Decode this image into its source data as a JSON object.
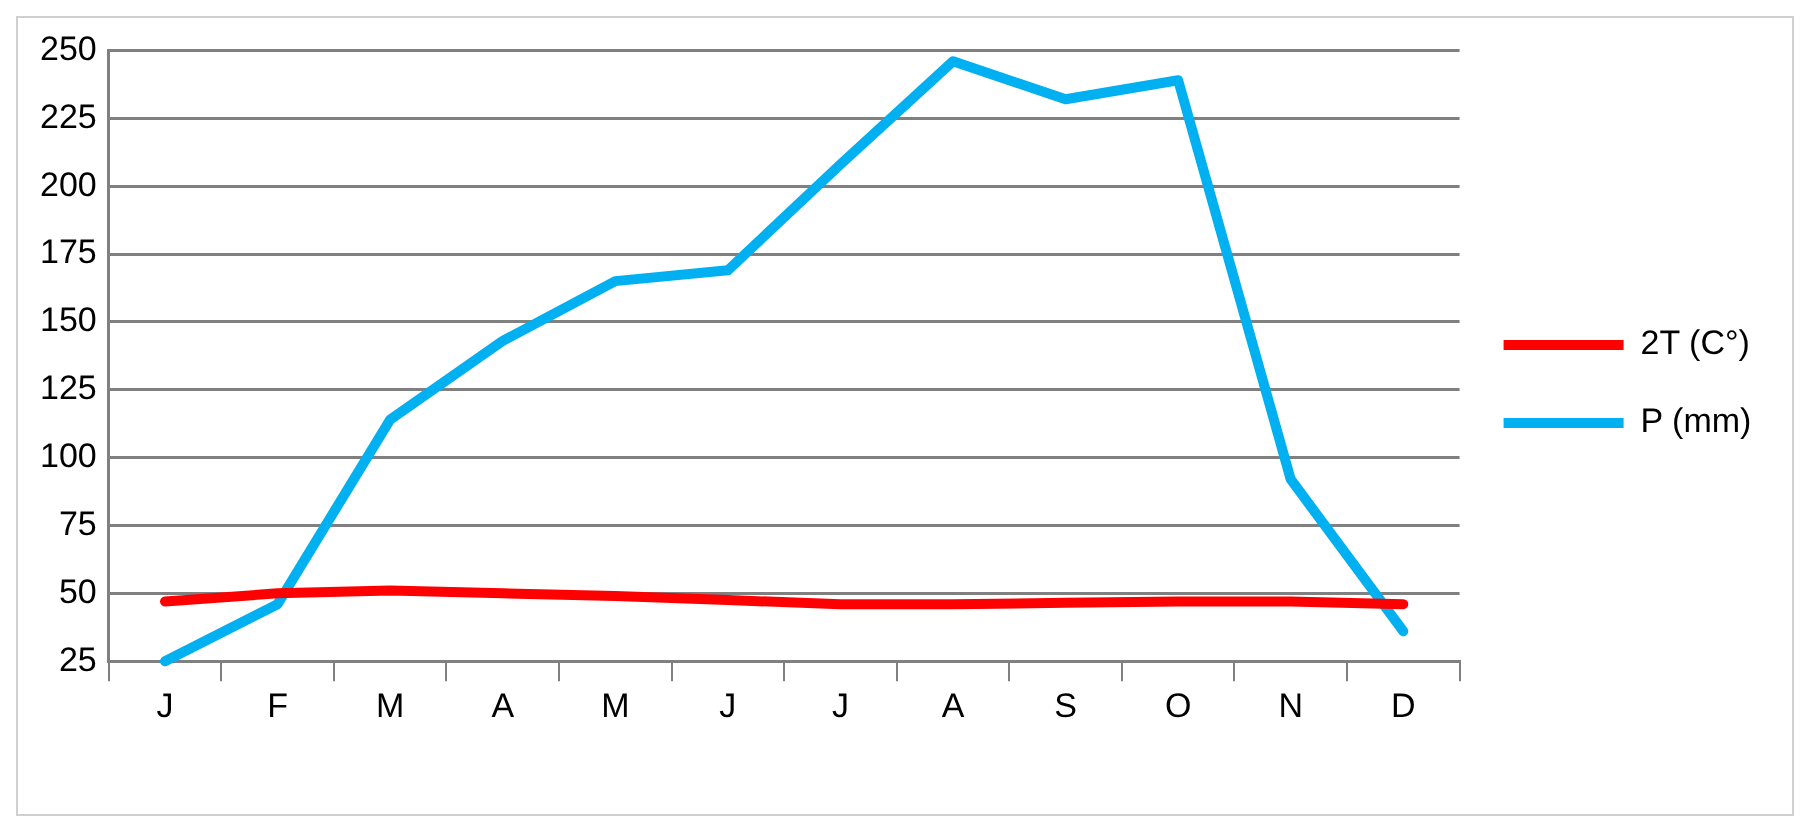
{
  "chart_data": {
    "type": "line",
    "categories": [
      "J",
      "F",
      "M",
      "A",
      "M",
      "J",
      "J",
      "A",
      "S",
      "O",
      "N",
      "D"
    ],
    "series": [
      {
        "name": "2T (C°)",
        "color": "#ff0000",
        "values": [
          47,
          50,
          51,
          50,
          49,
          47.5,
          46,
          46,
          46.5,
          47,
          47,
          46
        ]
      },
      {
        "name": "P (mm)",
        "color": "#00b0f0",
        "values": [
          25,
          46,
          114,
          143,
          165,
          169,
          208,
          246,
          232,
          239,
          92,
          36
        ]
      }
    ],
    "ylim": [
      25,
      250
    ],
    "yticks": [
      25,
      50,
      75,
      100,
      125,
      150,
      175,
      200,
      225,
      250
    ],
    "grid": "y",
    "legend": "right",
    "marker": "none",
    "line_style": "solid"
  }
}
